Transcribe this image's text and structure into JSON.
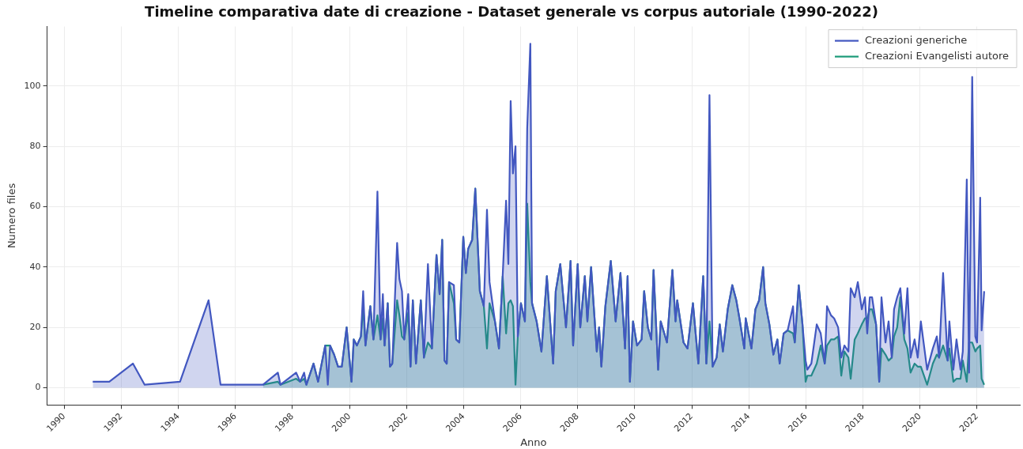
{
  "chart_data": {
    "type": "area",
    "title": "Timeline comparativa date di creazione - Dataset generale vs corpus autoriale (1990-2022)",
    "xlabel": "Anno",
    "ylabel": "Numero files",
    "xlim": [
      1989.4,
      2023.5
    ],
    "xticks": [
      1990,
      1992,
      1994,
      1996,
      1998,
      2000,
      2002,
      2004,
      2006,
      2008,
      2010,
      2012,
      2014,
      2016,
      2018,
      2020,
      2022
    ],
    "ylim": [
      -5.7,
      119.7
    ],
    "yticks": [
      0,
      20,
      40,
      60,
      80,
      100
    ],
    "grid": true,
    "legend": "top right",
    "series": [
      {
        "name": "Creazioni generiche",
        "color": "#4257c0",
        "x": [
          1991.0,
          1991.58,
          1992.41,
          1992.82,
          1994.06,
          1995.06,
          1995.48,
          1996.97,
          1997.49,
          1997.58,
          1998.13,
          1998.27,
          1998.41,
          1998.49,
          1998.74,
          1998.9,
          1999.15,
          1999.24,
          1999.32,
          1999.46,
          1999.6,
          1999.73,
          1999.9,
          2000.07,
          2000.15,
          2000.26,
          2000.4,
          2000.48,
          2000.56,
          2000.73,
          2000.84,
          2000.98,
          2001.09,
          2001.17,
          2001.23,
          2001.34,
          2001.42,
          2001.5,
          2001.67,
          2001.75,
          2001.84,
          2001.92,
          2002.06,
          2002.14,
          2002.22,
          2002.33,
          2002.5,
          2002.61,
          2002.75,
          2002.89,
          2003.05,
          2003.16,
          2003.25,
          2003.33,
          2003.41,
          2003.49,
          2003.66,
          2003.74,
          2003.85,
          2003.99,
          2004.08,
          2004.16,
          2004.3,
          2004.41,
          2004.57,
          2004.71,
          2004.82,
          2004.91,
          2005.1,
          2005.24,
          2005.37,
          2005.49,
          2005.57,
          2005.65,
          2005.73,
          2005.82,
          2005.9,
          2006.01,
          2006.15,
          2006.23,
          2006.34,
          2006.4,
          2006.56,
          2006.73,
          2006.92,
          2007.14,
          2007.23,
          2007.39,
          2007.59,
          2007.75,
          2007.84,
          2008.0,
          2008.09,
          2008.25,
          2008.34,
          2008.47,
          2008.67,
          2008.75,
          2008.83,
          2008.97,
          2009.16,
          2009.33,
          2009.5,
          2009.66,
          2009.75,
          2009.83,
          2009.94,
          2010.08,
          2010.24,
          2010.33,
          2010.46,
          2010.58,
          2010.66,
          2010.82,
          2010.91,
          2011.13,
          2011.32,
          2011.43,
          2011.49,
          2011.71,
          2011.85,
          2012.04,
          2012.23,
          2012.4,
          2012.51,
          2012.62,
          2012.73,
          2012.87,
          2012.98,
          2013.09,
          2013.26,
          2013.42,
          2013.56,
          2013.67,
          2013.84,
          2013.89,
          2014.09,
          2014.23,
          2014.36,
          2014.5,
          2014.58,
          2014.72,
          2014.86,
          2015.0,
          2015.08,
          2015.22,
          2015.36,
          2015.55,
          2015.61,
          2015.75,
          2015.88,
          2015.99,
          2016.05,
          2016.19,
          2016.38,
          2016.52,
          2016.66,
          2016.74,
          2016.88,
          2016.99,
          2017.13,
          2017.24,
          2017.35,
          2017.49,
          2017.57,
          2017.71,
          2017.82,
          2017.96,
          2018.07,
          2018.15,
          2018.24,
          2018.32,
          2018.46,
          2018.57,
          2018.65,
          2018.79,
          2018.9,
          2019.01,
          2019.09,
          2019.2,
          2019.31,
          2019.45,
          2019.56,
          2019.67,
          2019.81,
          2019.92,
          2020.03,
          2020.25,
          2020.45,
          2020.59,
          2020.67,
          2020.81,
          2020.97,
          2021.03,
          2021.17,
          2021.28,
          2021.42,
          2021.5,
          2021.64,
          2021.72,
          2021.83,
          2021.94,
          2022.0,
          2022.11,
          2022.16,
          2022.25
        ],
        "values": [
          2,
          2,
          8,
          1,
          2,
          29,
          1,
          1,
          5,
          1,
          5,
          2,
          5,
          1,
          8,
          2,
          14,
          1,
          14,
          11,
          7,
          7,
          20,
          2,
          16,
          14,
          17,
          32,
          14,
          27,
          16,
          65,
          16,
          31,
          14,
          28,
          7,
          8,
          48,
          36,
          32,
          16,
          31,
          7,
          29,
          8,
          29,
          10,
          41,
          13,
          44,
          31,
          49,
          9,
          8,
          35,
          34,
          16,
          15,
          50,
          38,
          46,
          49,
          66,
          32,
          27,
          59,
          35,
          22,
          13,
          37,
          62,
          41,
          95,
          71,
          80,
          17,
          28,
          22,
          86,
          114,
          28,
          22,
          12,
          37,
          8,
          32,
          41,
          20,
          42,
          14,
          41,
          20,
          37,
          22,
          40,
          12,
          20,
          7,
          27,
          42,
          22,
          38,
          13,
          37,
          2,
          22,
          14,
          16,
          32,
          20,
          16,
          39,
          6,
          22,
          15,
          39,
          22,
          29,
          15,
          13,
          28,
          8,
          37,
          8,
          97,
          7,
          10,
          21,
          12,
          26,
          34,
          29,
          23,
          13,
          23,
          13,
          26,
          29,
          40,
          28,
          21,
          11,
          16,
          8,
          18,
          19,
          27,
          15,
          34,
          21,
          9,
          6,
          8,
          21,
          18,
          8,
          27,
          24,
          23,
          20,
          10,
          14,
          12,
          33,
          30,
          35,
          26,
          30,
          18,
          30,
          30,
          21,
          2,
          30,
          15,
          22,
          10,
          26,
          30,
          33,
          18,
          33,
          10,
          16,
          10,
          22,
          6,
          13,
          17,
          10,
          38,
          9,
          22,
          6,
          16,
          6,
          12,
          69,
          5,
          103,
          17,
          15,
          63,
          19,
          32
        ]
      },
      {
        "name": "Creazioni Evangelisti autore",
        "color": "#1b9a78",
        "x": [
          1996.97,
          1997.49,
          1997.58,
          1998.13,
          1998.27,
          1998.41,
          1998.49,
          1998.74,
          1998.9,
          1999.15,
          1999.24,
          1999.32,
          1999.46,
          1999.6,
          1999.73,
          1999.9,
          2000.07,
          2000.15,
          2000.26,
          2000.4,
          2000.48,
          2000.56,
          2000.73,
          2000.84,
          2000.98,
          2001.09,
          2001.17,
          2001.23,
          2001.34,
          2001.42,
          2001.5,
          2001.67,
          2001.75,
          2001.84,
          2001.92,
          2002.06,
          2002.14,
          2002.22,
          2002.33,
          2002.5,
          2002.61,
          2002.75,
          2002.89,
          2003.05,
          2003.16,
          2003.25,
          2003.33,
          2003.41,
          2003.49,
          2003.66,
          2003.74,
          2003.85,
          2003.99,
          2004.08,
          2004.16,
          2004.3,
          2004.41,
          2004.57,
          2004.71,
          2004.82,
          2004.91,
          2005.1,
          2005.24,
          2005.37,
          2005.49,
          2005.57,
          2005.65,
          2005.73,
          2005.82,
          2005.9,
          2006.01,
          2006.15,
          2006.23,
          2006.34,
          2006.4,
          2006.56,
          2006.73,
          2006.92,
          2007.14,
          2007.23,
          2007.39,
          2007.59,
          2007.75,
          2007.84,
          2008.0,
          2008.09,
          2008.25,
          2008.34,
          2008.47,
          2008.67,
          2008.75,
          2008.83,
          2008.97,
          2009.16,
          2009.33,
          2009.5,
          2009.66,
          2009.75,
          2009.83,
          2009.94,
          2010.08,
          2010.24,
          2010.33,
          2010.46,
          2010.58,
          2010.66,
          2010.82,
          2010.91,
          2011.13,
          2011.32,
          2011.43,
          2011.49,
          2011.71,
          2011.85,
          2012.04,
          2012.23,
          2012.4,
          2012.51,
          2012.62,
          2012.73,
          2012.87,
          2012.98,
          2013.09,
          2013.26,
          2013.42,
          2013.56,
          2013.67,
          2013.84,
          2013.89,
          2014.09,
          2014.23,
          2014.36,
          2014.5,
          2014.58,
          2014.72,
          2014.86,
          2015.0,
          2015.08,
          2015.22,
          2015.36,
          2015.55,
          2015.61,
          2015.75,
          2015.88,
          2015.99,
          2016.05,
          2016.19,
          2016.38,
          2016.52,
          2016.66,
          2016.74,
          2016.88,
          2016.99,
          2017.13,
          2017.24,
          2017.35,
          2017.49,
          2017.57,
          2017.71,
          2017.82,
          2017.96,
          2018.07,
          2018.15,
          2018.24,
          2018.32,
          2018.46,
          2018.57,
          2018.65,
          2018.79,
          2018.9,
          2019.01,
          2019.09,
          2019.2,
          2019.31,
          2019.45,
          2019.56,
          2019.67,
          2019.81,
          2019.92,
          2020.03,
          2020.25,
          2020.45,
          2020.59,
          2020.67,
          2020.81,
          2020.97,
          2021.03,
          2021.17,
          2021.28,
          2021.42,
          2021.5,
          2021.64,
          2021.72,
          2021.83,
          2021.94,
          2022.0,
          2022.11,
          2022.16,
          2022.25
        ],
        "values": [
          1,
          2,
          1,
          3,
          2,
          3,
          1,
          8,
          2,
          14,
          14,
          14,
          11,
          7,
          7,
          20,
          2,
          16,
          14,
          17,
          27,
          14,
          27,
          16,
          24,
          16,
          23,
          14,
          28,
          7,
          8,
          29,
          24,
          17,
          16,
          25,
          7,
          29,
          8,
          29,
          10,
          15,
          13,
          44,
          31,
          49,
          9,
          8,
          35,
          28,
          16,
          15,
          50,
          38,
          46,
          49,
          66,
          32,
          27,
          13,
          28,
          22,
          13,
          37,
          18,
          28,
          29,
          27,
          1,
          17,
          28,
          22,
          61,
          35,
          28,
          22,
          12,
          37,
          8,
          32,
          41,
          20,
          42,
          14,
          41,
          20,
          37,
          22,
          40,
          12,
          20,
          7,
          27,
          42,
          22,
          38,
          13,
          37,
          2,
          22,
          14,
          16,
          32,
          20,
          16,
          39,
          6,
          22,
          15,
          39,
          22,
          29,
          15,
          13,
          28,
          8,
          37,
          8,
          22,
          7,
          10,
          21,
          12,
          26,
          34,
          29,
          23,
          13,
          23,
          13,
          26,
          29,
          40,
          28,
          21,
          11,
          16,
          8,
          18,
          19,
          18,
          15,
          34,
          21,
          2,
          4,
          4,
          8,
          14,
          8,
          14,
          16,
          16,
          17,
          4,
          12,
          10,
          3,
          16,
          18,
          21,
          23,
          23,
          26,
          26,
          21,
          2,
          13,
          11,
          9,
          10,
          17,
          20,
          30,
          16,
          13,
          5,
          8,
          7,
          7,
          1,
          8,
          11,
          10,
          14,
          9,
          13,
          2,
          3,
          3,
          9,
          2,
          15,
          15,
          12,
          13,
          14,
          3,
          1
        ]
      }
    ]
  }
}
